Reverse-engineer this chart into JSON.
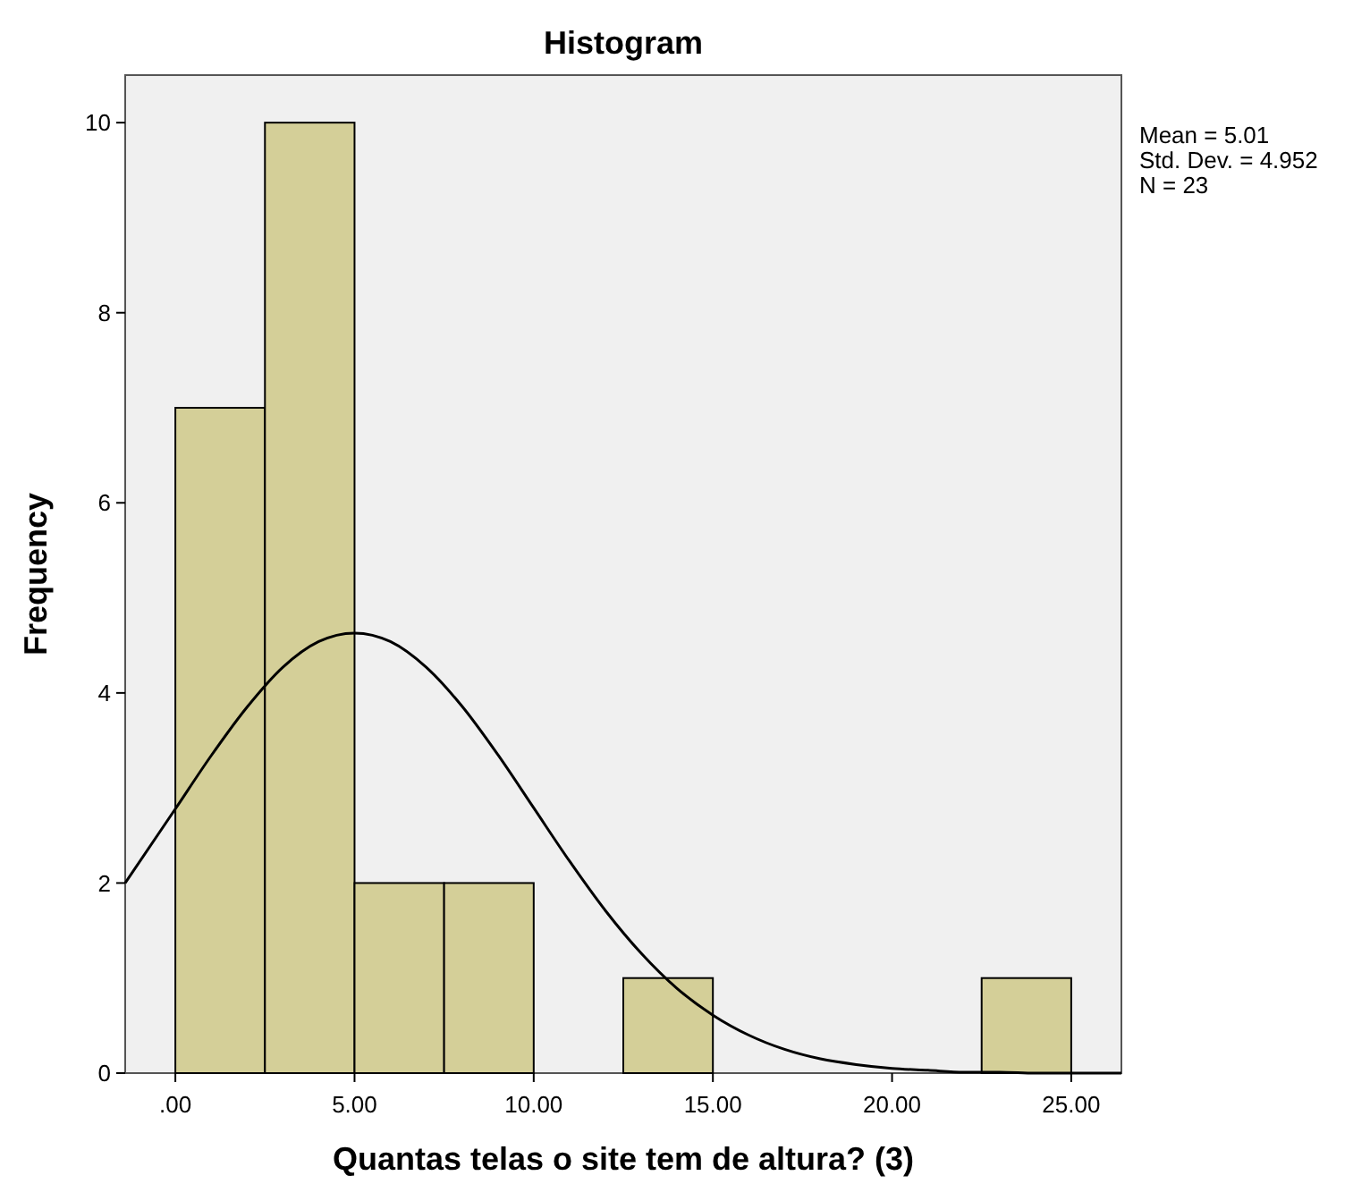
{
  "chart_data": {
    "type": "histogram",
    "title": "Histogram",
    "xlabel": "Quantas telas o site tem de altura? (3)",
    "ylabel": "Frequency",
    "bins": [
      0,
      2.5,
      5,
      7.5,
      10,
      12.5,
      15,
      17.5,
      20,
      22.5,
      25
    ],
    "values": [
      7,
      10,
      2,
      2,
      0,
      1,
      0,
      0,
      0,
      1
    ],
    "color": "#d4cf98",
    "series": [
      {
        "type": "line",
        "color": "#000000",
        "x": [
          -1.4,
          0,
          1,
          2,
          3,
          4,
          5,
          6,
          7,
          8,
          9,
          10,
          11,
          12,
          13,
          14,
          15,
          16,
          17,
          18,
          19,
          20,
          21,
          22,
          23,
          24,
          25,
          26.4
        ],
        "values": [
          2.0,
          2.78,
          3.34,
          3.85,
          4.27,
          4.54,
          4.63,
          4.54,
          4.27,
          3.86,
          3.35,
          2.79,
          2.23,
          1.71,
          1.26,
          0.89,
          0.61,
          0.4,
          0.25,
          0.15,
          0.09,
          0.05,
          0.03,
          0.01,
          0.01,
          0,
          0,
          0
        ]
      }
    ],
    "xlim": [
      -1.4,
      26.4
    ],
    "ylim": [
      0,
      10.5
    ],
    "xticks": [
      {
        "value": 0,
        "label": ".00"
      },
      {
        "value": 5,
        "label": "5.00"
      },
      {
        "value": 10,
        "label": "10.00"
      },
      {
        "value": 15,
        "label": "15.00"
      },
      {
        "value": 20,
        "label": "20.00"
      },
      {
        "value": 25,
        "label": "25.00"
      }
    ],
    "yticks": [
      0,
      2,
      4,
      6,
      8,
      10
    ],
    "grid": false,
    "annotations": [
      "Mean = 5.01",
      "Std. Dev. = 4.952",
      "N = 23"
    ]
  }
}
